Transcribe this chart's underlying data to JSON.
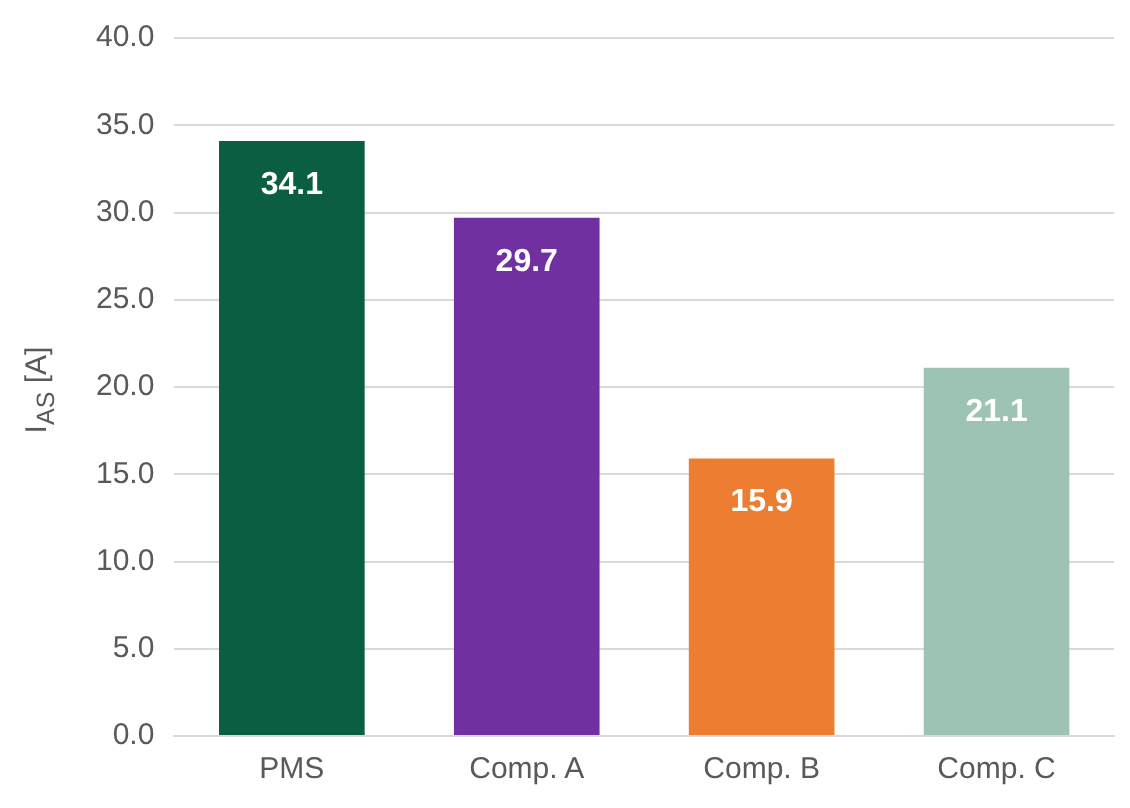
{
  "chart_data": {
    "type": "bar",
    "ylabel": "I$_{AS}$ [A]",
    "categories": [
      "PMS",
      "Comp. A",
      "Comp. B",
      "Comp. C"
    ],
    "values": [
      34.1,
      29.7,
      15.9,
      21.1
    ],
    "colors": [
      "#0b5e42",
      "#7030a0",
      "#ed7d31",
      "#9dc3b2"
    ],
    "ylim": [
      0,
      40
    ],
    "yticks": [
      {
        "value": 0,
        "label": "0.0"
      },
      {
        "value": 5,
        "label": "5.0"
      },
      {
        "value": 10,
        "label": "10.0"
      },
      {
        "value": 15,
        "label": "15.0"
      },
      {
        "value": 20,
        "label": "20.0"
      },
      {
        "value": 25,
        "label": "25.0"
      },
      {
        "value": 30,
        "label": "30.0"
      },
      {
        "value": 35,
        "label": "35.0"
      },
      {
        "value": 40,
        "label": "40.0"
      }
    ],
    "grid": "y",
    "data_labels": true,
    "legend": false
  }
}
